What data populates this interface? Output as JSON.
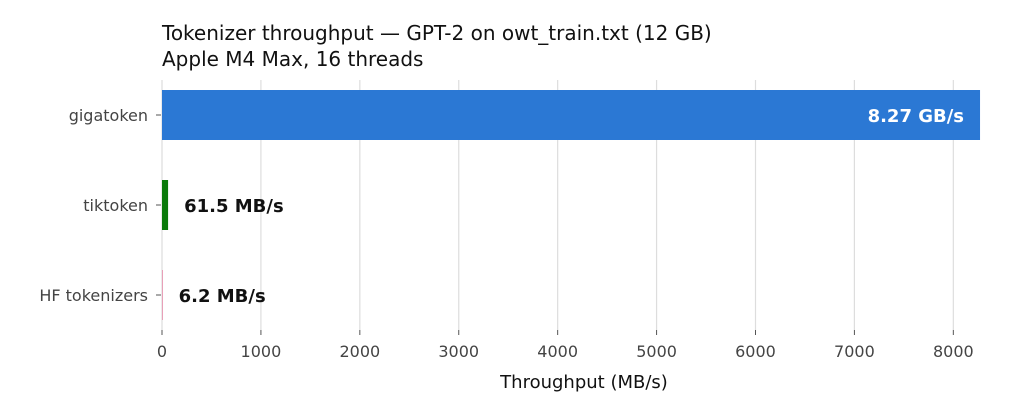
{
  "chart_data": {
    "type": "bar",
    "orientation": "horizontal",
    "title": "Tokenizer throughput — GPT-2 on owt_train.txt (12 GB)",
    "subtitle": "Apple M4 Max, 16 threads",
    "xlabel": "Throughput (MB/s)",
    "ylabel": "",
    "categories": [
      "gigatoken",
      "tiktoken",
      "HF tokenizers"
    ],
    "values": [
      8270,
      61.5,
      6.2
    ],
    "value_labels": [
      "8.27 GB/s",
      "61.5 MB/s",
      "6.2 MB/s"
    ],
    "colors": [
      "#2b78d4",
      "#0a7a0a",
      "#e8a0b8"
    ],
    "label_colors": [
      "#ffffff",
      "#111111",
      "#111111"
    ],
    "label_inside": [
      true,
      false,
      false
    ],
    "xlim": [
      0,
      8300
    ],
    "xticks": [
      0,
      1000,
      2000,
      3000,
      4000,
      5000,
      6000,
      7000,
      8000
    ],
    "xtick_labels": [
      "0",
      "1000",
      "2000",
      "3000",
      "4000",
      "5000",
      "6000",
      "7000",
      "8000"
    ],
    "grid": "vertical",
    "legend": "none"
  }
}
